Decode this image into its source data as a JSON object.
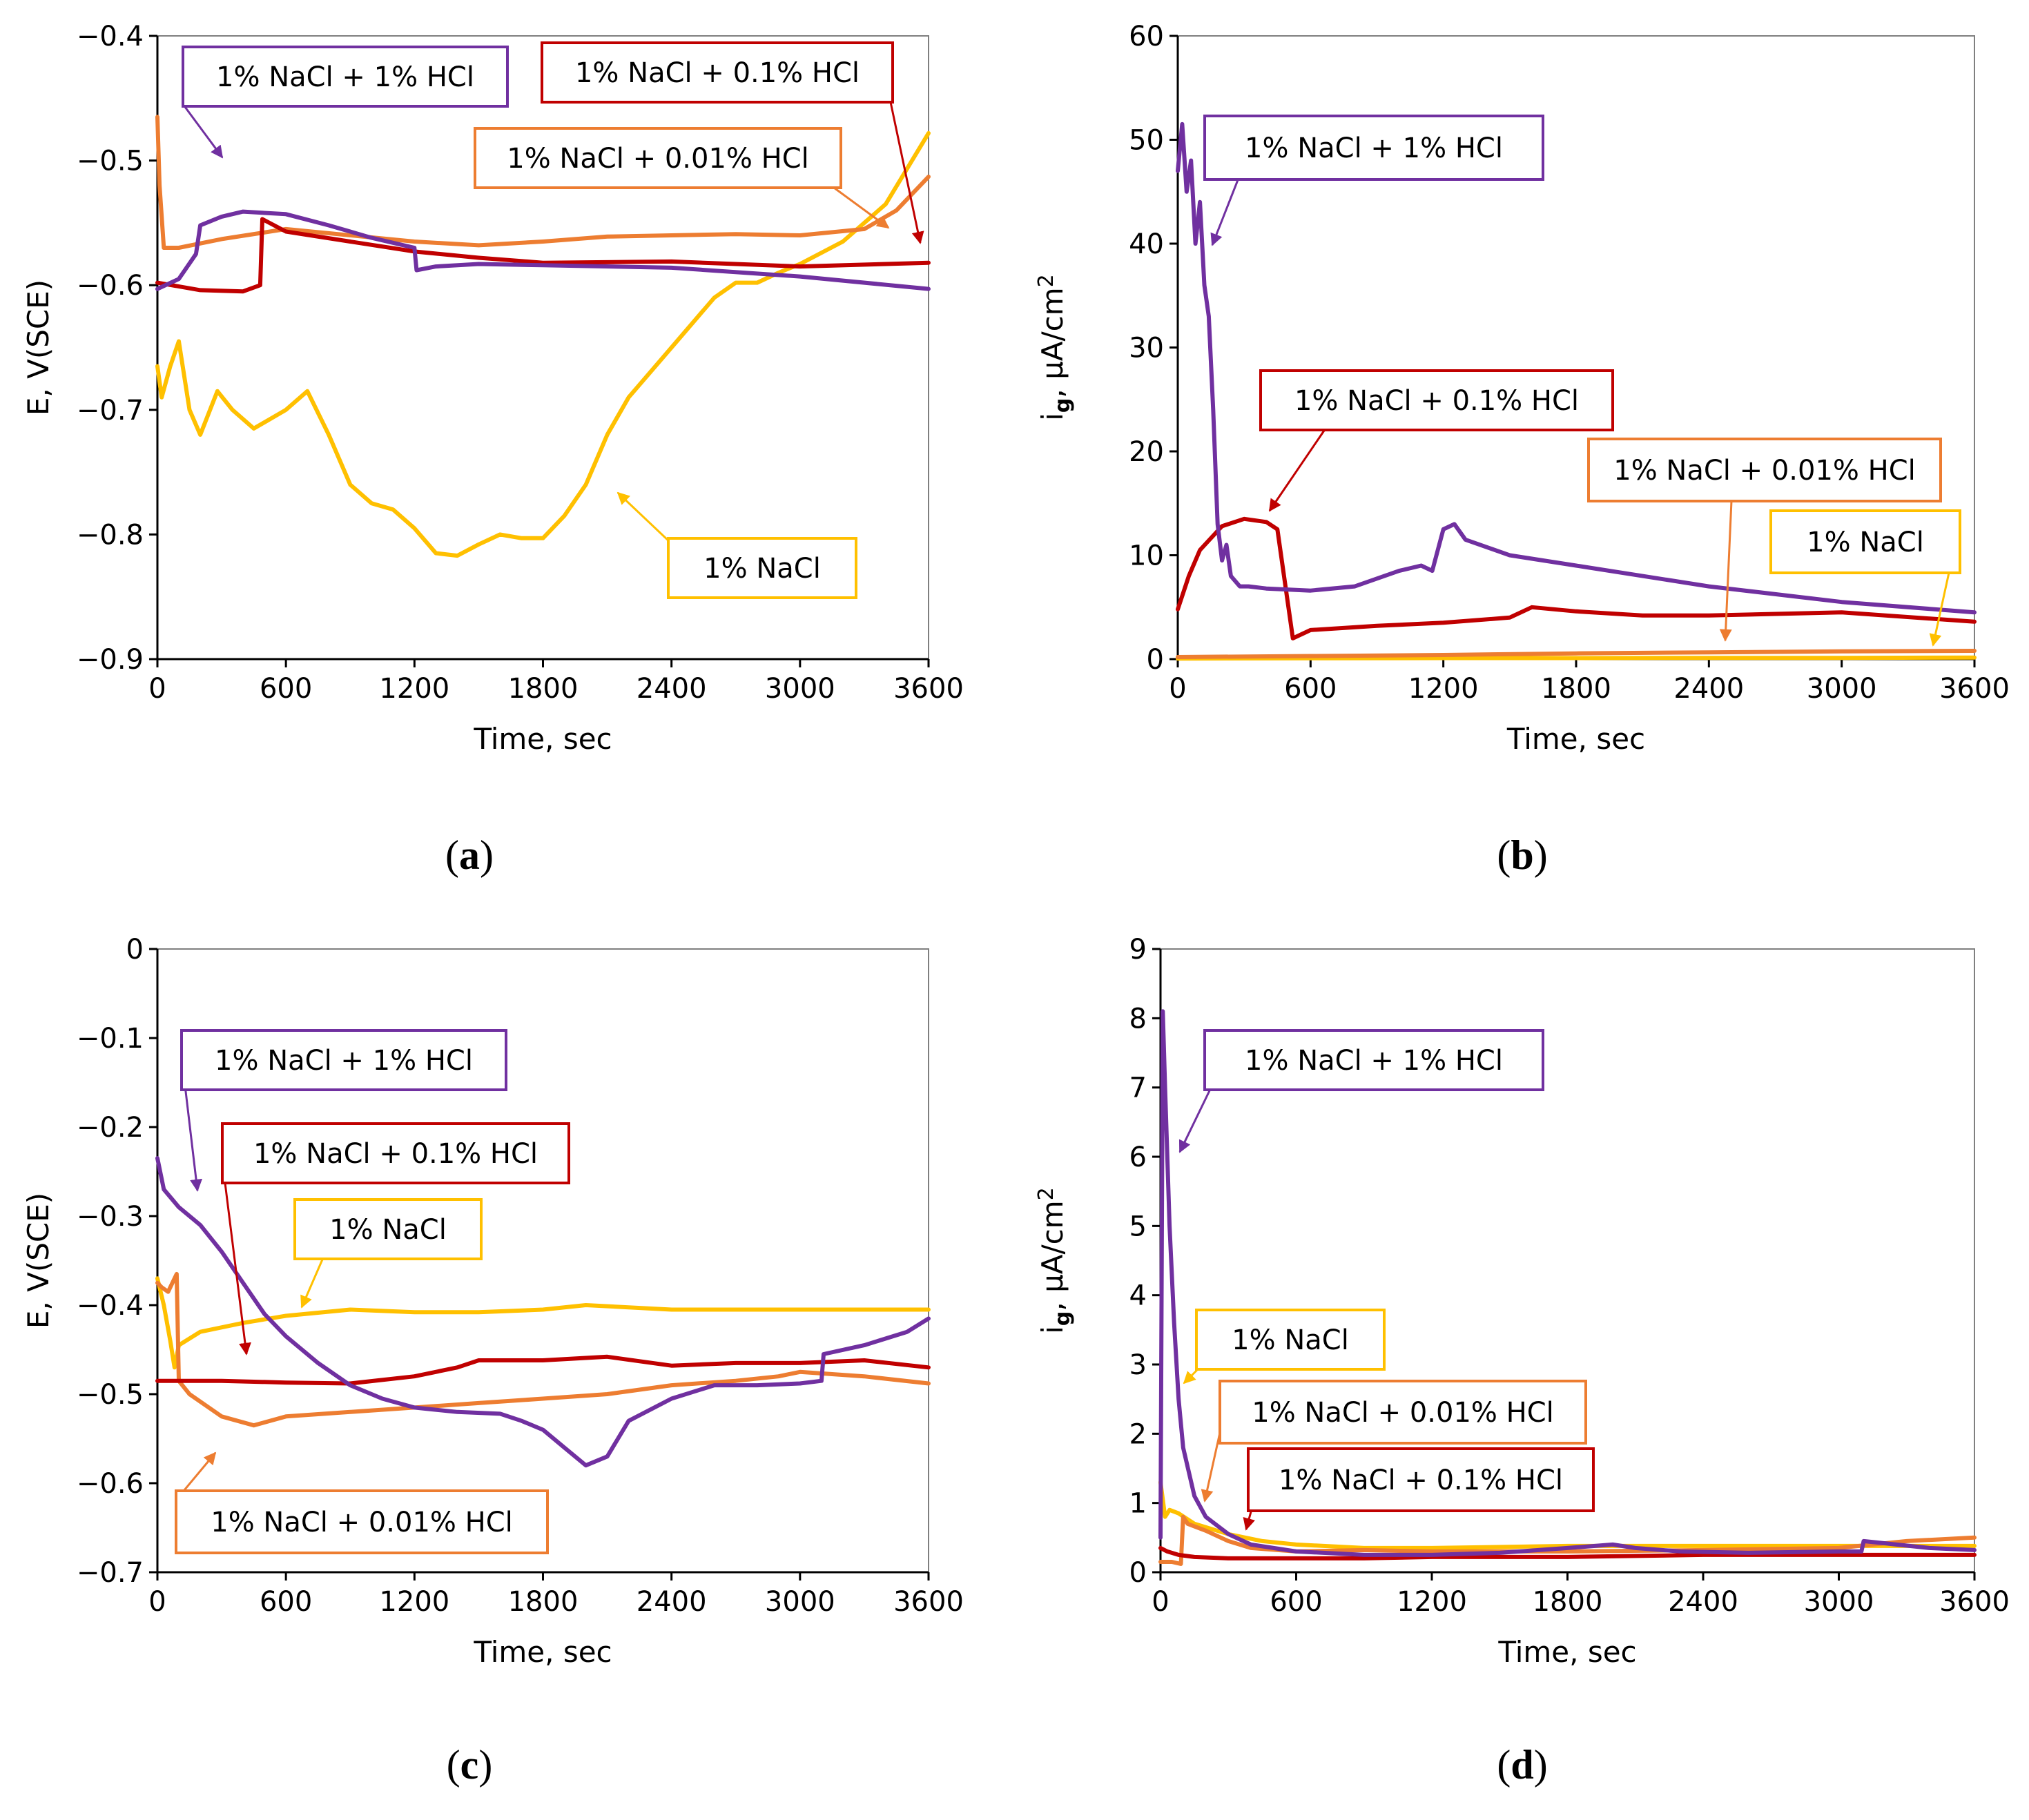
{
  "colors": {
    "purple": "#7030A0",
    "red": "#C00000",
    "orange": "#ED7D31",
    "yellow": "#FFC000",
    "axis": "#000000",
    "frame": "#7f7f7f"
  },
  "chart_data": [
    {
      "id": "a",
      "caption_letter": "a",
      "type": "line",
      "xlabel": "Time, sec",
      "ylabel": "E, V(SCE)",
      "xlim": [
        0,
        3600
      ],
      "ylim": [
        -0.9,
        -0.4
      ],
      "xticks": [
        0,
        600,
        1200,
        1800,
        2400,
        3000,
        3600
      ],
      "xtick_labels": [
        "0",
        "600",
        "1200",
        "1800",
        "2400",
        "3000",
        "3600"
      ],
      "yticks": [
        -0.9,
        -0.8,
        -0.7,
        -0.6,
        -0.5,
        -0.4
      ],
      "ytick_labels": [
        "−0.9",
        "−0.8",
        "−0.7",
        "−0.6",
        "−0.5",
        "−0.4"
      ],
      "series": [
        {
          "name": "1% NaCl + 1% HCl",
          "color": "purple",
          "x": [
            0,
            100,
            180,
            200,
            300,
            400,
            600,
            800,
            1000,
            1150,
            1200,
            1210,
            1300,
            1500,
            1800,
            2400,
            3000,
            3600
          ],
          "y": [
            -0.603,
            -0.595,
            -0.575,
            -0.552,
            -0.545,
            -0.541,
            -0.543,
            -0.552,
            -0.562,
            -0.568,
            -0.57,
            -0.588,
            -0.585,
            -0.583,
            -0.584,
            -0.586,
            -0.593,
            -0.603
          ]
        },
        {
          "name": "1% NaCl + 0.1% HCl",
          "color": "red",
          "x": [
            0,
            200,
            400,
            480,
            490,
            600,
            900,
            1200,
            1500,
            1800,
            2400,
            3000,
            3600
          ],
          "y": [
            -0.598,
            -0.604,
            -0.605,
            -0.6,
            -0.547,
            -0.557,
            -0.565,
            -0.573,
            -0.578,
            -0.582,
            -0.581,
            -0.585,
            -0.582
          ]
        },
        {
          "name": "1% NaCl + 0.01% HCl",
          "color": "orange",
          "x": [
            0,
            10,
            30,
            100,
            300,
            600,
            1200,
            1500,
            1800,
            2100,
            2400,
            2700,
            3000,
            3300,
            3450,
            3600
          ],
          "y": [
            -0.465,
            -0.52,
            -0.57,
            -0.57,
            -0.563,
            -0.555,
            -0.565,
            -0.568,
            -0.565,
            -0.561,
            -0.56,
            -0.559,
            -0.56,
            -0.555,
            -0.54,
            -0.513
          ]
        },
        {
          "name": "1% NaCl",
          "color": "yellow",
          "x": [
            0,
            20,
            60,
            100,
            150,
            200,
            280,
            350,
            450,
            600,
            700,
            800,
            900,
            1000,
            1100,
            1200,
            1300,
            1400,
            1500,
            1600,
            1700,
            1800,
            1900,
            2000,
            2100,
            2200,
            2400,
            2600,
            2700,
            2800,
            2900,
            3000,
            3200,
            3400,
            3600
          ],
          "y": [
            -0.665,
            -0.69,
            -0.665,
            -0.645,
            -0.7,
            -0.72,
            -0.685,
            -0.7,
            -0.715,
            -0.7,
            -0.685,
            -0.72,
            -0.76,
            -0.775,
            -0.78,
            -0.795,
            -0.815,
            -0.817,
            -0.808,
            -0.8,
            -0.803,
            -0.803,
            -0.785,
            -0.76,
            -0.72,
            -0.69,
            -0.65,
            -0.61,
            -0.598,
            -0.598,
            -0.59,
            -0.583,
            -0.565,
            -0.535,
            -0.478
          ]
        }
      ],
      "annotations": [
        {
          "text": "1% NaCl + 1% HCl",
          "color": "purple"
        },
        {
          "text": "1% NaCl + 0.1% HCl",
          "color": "red"
        },
        {
          "text": "1% NaCl + 0.01% HCl",
          "color": "orange"
        },
        {
          "text": "1% NaCl",
          "color": "yellow"
        }
      ]
    },
    {
      "id": "b",
      "caption_letter": "b",
      "type": "line",
      "xlabel": "Time, sec",
      "ylabel_main": "i",
      "ylabel_sub": "g",
      "ylabel_rest": ", μA/cm",
      "ylabel_sup": "2",
      "xlim": [
        0,
        3600
      ],
      "ylim": [
        0,
        60
      ],
      "xticks": [
        0,
        600,
        1200,
        1800,
        2400,
        3000,
        3600
      ],
      "xtick_labels": [
        "0",
        "600",
        "1200",
        "1800",
        "2400",
        "3000",
        "3600"
      ],
      "yticks": [
        0,
        10,
        20,
        30,
        40,
        50,
        60
      ],
      "ytick_labels": [
        "0",
        "10",
        "20",
        "30",
        "40",
        "50",
        "60"
      ],
      "series": [
        {
          "name": "1% NaCl + 1% HCl",
          "color": "purple",
          "x": [
            0,
            20,
            40,
            60,
            80,
            100,
            120,
            140,
            160,
            180,
            200,
            220,
            240,
            280,
            320,
            400,
            600,
            800,
            1000,
            1100,
            1150,
            1200,
            1250,
            1300,
            1500,
            1800,
            2400,
            3000,
            3600
          ],
          "y": [
            47.0,
            51.5,
            45.0,
            48.0,
            40.0,
            44.0,
            36.0,
            33.0,
            24.0,
            13.0,
            9.5,
            11.0,
            8.0,
            7.0,
            7.0,
            6.8,
            6.6,
            7.0,
            8.5,
            9.0,
            8.5,
            12.5,
            13.0,
            11.5,
            10.0,
            9.0,
            7.0,
            5.5,
            4.5
          ]
        },
        {
          "name": "1% NaCl + 0.1% HCl",
          "color": "red",
          "x": [
            0,
            50,
            100,
            200,
            300,
            400,
            450,
            500,
            520,
            600,
            900,
            1200,
            1500,
            1600,
            1800,
            2100,
            2400,
            3000,
            3600
          ],
          "y": [
            4.8,
            8.0,
            10.5,
            12.8,
            13.5,
            13.2,
            12.5,
            5.0,
            2.0,
            2.8,
            3.2,
            3.5,
            4.0,
            5.0,
            4.6,
            4.2,
            4.2,
            4.5,
            3.6
          ]
        },
        {
          "name": "1% NaCl + 0.01% HCl",
          "color": "orange",
          "x": [
            0,
            600,
            1200,
            1800,
            2400,
            3000,
            3600
          ],
          "y": [
            0.2,
            0.3,
            0.4,
            0.55,
            0.65,
            0.75,
            0.8
          ]
        },
        {
          "name": "1% NaCl",
          "color": "yellow",
          "x": [
            0,
            600,
            1200,
            1800,
            2400,
            3000,
            3600
          ],
          "y": [
            0.05,
            0.08,
            0.1,
            0.1,
            0.12,
            0.12,
            0.15
          ]
        }
      ],
      "annotations": [
        {
          "text": "1% NaCl + 1% HCl",
          "color": "purple"
        },
        {
          "text": "1% NaCl + 0.1% HCl",
          "color": "red"
        },
        {
          "text": "1% NaCl + 0.01% HCl",
          "color": "orange"
        },
        {
          "text": "1% NaCl",
          "color": "yellow"
        }
      ]
    },
    {
      "id": "c",
      "caption_letter": "c",
      "type": "line",
      "xlabel": "Time, sec",
      "ylabel": "E, V(SCE)",
      "xlim": [
        0,
        3600
      ],
      "ylim": [
        -0.7,
        0
      ],
      "xticks": [
        0,
        600,
        1200,
        1800,
        2400,
        3000,
        3600
      ],
      "xtick_labels": [
        "0",
        "600",
        "1200",
        "1800",
        "2400",
        "3000",
        "3600"
      ],
      "yticks": [
        -0.7,
        -0.6,
        -0.5,
        -0.4,
        -0.3,
        -0.2,
        -0.1,
        0
      ],
      "ytick_labels": [
        "−0.7",
        "−0.6",
        "−0.5",
        "−0.4",
        "−0.3",
        "−0.2",
        "−0.1",
        "0"
      ],
      "series": [
        {
          "name": "1% NaCl + 1% HCl",
          "color": "purple",
          "x": [
            0,
            30,
            100,
            200,
            300,
            400,
            500,
            600,
            750,
            900,
            1050,
            1200,
            1400,
            1600,
            1700,
            1800,
            1900,
            2000,
            2100,
            2200,
            2400,
            2600,
            2800,
            3000,
            3100,
            3110,
            3300,
            3500,
            3600
          ],
          "y": [
            -0.235,
            -0.27,
            -0.29,
            -0.31,
            -0.34,
            -0.375,
            -0.41,
            -0.435,
            -0.465,
            -0.49,
            -0.505,
            -0.515,
            -0.52,
            -0.522,
            -0.53,
            -0.54,
            -0.56,
            -0.58,
            -0.57,
            -0.53,
            -0.505,
            -0.49,
            -0.49,
            -0.488,
            -0.485,
            -0.455,
            -0.445,
            -0.43,
            -0.415
          ]
        },
        {
          "name": "1% NaCl + 0.1% HCl",
          "color": "red",
          "x": [
            0,
            300,
            600,
            900,
            1200,
            1400,
            1500,
            1800,
            2100,
            2400,
            2700,
            3000,
            3300,
            3600
          ],
          "y": [
            -0.485,
            -0.485,
            -0.487,
            -0.488,
            -0.48,
            -0.47,
            -0.462,
            -0.462,
            -0.458,
            -0.468,
            -0.465,
            -0.465,
            -0.462,
            -0.47
          ]
        },
        {
          "name": "1% NaCl + 0.01% HCl",
          "color": "orange",
          "x": [
            0,
            20,
            50,
            70,
            90,
            100,
            150,
            300,
            450,
            600,
            900,
            1200,
            1500,
            1800,
            2100,
            2400,
            2700,
            2900,
            3000,
            3300,
            3600
          ],
          "y": [
            -0.375,
            -0.38,
            -0.385,
            -0.375,
            -0.365,
            -0.485,
            -0.5,
            -0.525,
            -0.535,
            -0.525,
            -0.52,
            -0.515,
            -0.51,
            -0.505,
            -0.5,
            -0.49,
            -0.485,
            -0.48,
            -0.475,
            -0.48,
            -0.488
          ]
        },
        {
          "name": "1% NaCl",
          "color": "yellow",
          "x": [
            0,
            30,
            60,
            80,
            100,
            200,
            400,
            600,
            900,
            1200,
            1500,
            1800,
            2000,
            2400,
            3000,
            3600
          ],
          "y": [
            -0.37,
            -0.4,
            -0.44,
            -0.47,
            -0.445,
            -0.43,
            -0.42,
            -0.412,
            -0.405,
            -0.408,
            -0.408,
            -0.405,
            -0.4,
            -0.405,
            -0.405,
            -0.405
          ]
        }
      ],
      "annotations": [
        {
          "text": "1% NaCl + 1% HCl",
          "color": "purple"
        },
        {
          "text": "1% NaCl + 0.1% HCl",
          "color": "red"
        },
        {
          "text": "1% NaCl",
          "color": "yellow"
        },
        {
          "text": "1% NaCl + 0.01% HCl",
          "color": "orange"
        }
      ]
    },
    {
      "id": "d",
      "caption_letter": "d",
      "type": "line",
      "xlabel": "Time, sec",
      "ylabel_main": "i",
      "ylabel_sub": "g",
      "ylabel_rest": ", μA/cm",
      "ylabel_sup": "2",
      "xlim": [
        0,
        3600
      ],
      "ylim": [
        0,
        9
      ],
      "xticks": [
        0,
        600,
        1200,
        1800,
        2400,
        3000,
        3600
      ],
      "xtick_labels": [
        "0",
        "600",
        "1200",
        "1800",
        "2400",
        "3000",
        "3600"
      ],
      "yticks": [
        0,
        1,
        2,
        3,
        4,
        5,
        6,
        7,
        8,
        9
      ],
      "ytick_labels": [
        "0",
        "1",
        "2",
        "3",
        "4",
        "5",
        "6",
        "7",
        "8",
        "9"
      ],
      "series": [
        {
          "name": "1% NaCl + 1% HCl",
          "color": "purple",
          "x": [
            0,
            10,
            20,
            40,
            60,
            80,
            100,
            150,
            200,
            300,
            400,
            600,
            900,
            1200,
            1500,
            1800,
            2000,
            2100,
            2300,
            2600,
            3000,
            3100,
            3110,
            3400,
            3600
          ],
          "y": [
            0.5,
            8.1,
            7.0,
            5.0,
            3.6,
            2.5,
            1.8,
            1.1,
            0.8,
            0.55,
            0.4,
            0.3,
            0.25,
            0.25,
            0.28,
            0.35,
            0.4,
            0.35,
            0.3,
            0.28,
            0.3,
            0.3,
            0.45,
            0.35,
            0.32
          ]
        },
        {
          "name": "1% NaCl + 0.1% HCl",
          "color": "red",
          "x": [
            0,
            30,
            80,
            150,
            300,
            600,
            900,
            1200,
            1800,
            2400,
            3000,
            3600
          ],
          "y": [
            0.35,
            0.3,
            0.25,
            0.22,
            0.2,
            0.2,
            0.2,
            0.22,
            0.22,
            0.25,
            0.25,
            0.25
          ]
        },
        {
          "name": "1% NaCl + 0.01% HCl",
          "color": "orange",
          "x": [
            0,
            50,
            90,
            100,
            120,
            200,
            300,
            400,
            600,
            900,
            1200,
            1800,
            2400,
            3000,
            3300,
            3600
          ],
          "y": [
            0.15,
            0.15,
            0.12,
            0.8,
            0.7,
            0.6,
            0.45,
            0.35,
            0.3,
            0.32,
            0.3,
            0.3,
            0.32,
            0.35,
            0.45,
            0.5
          ]
        },
        {
          "name": "1% NaCl",
          "color": "yellow",
          "x": [
            0,
            20,
            40,
            80,
            150,
            300,
            450,
            600,
            900,
            1200,
            1800,
            2400,
            3000,
            3600
          ],
          "y": [
            1.3,
            0.8,
            0.9,
            0.85,
            0.7,
            0.55,
            0.45,
            0.4,
            0.35,
            0.35,
            0.38,
            0.38,
            0.38,
            0.38
          ]
        }
      ],
      "annotations": [
        {
          "text": "1% NaCl + 1% HCl",
          "color": "purple"
        },
        {
          "text": "1% NaCl",
          "color": "yellow"
        },
        {
          "text": "1% NaCl + 0.01% HCl",
          "color": "orange"
        },
        {
          "text": "1% NaCl + 0.1% HCl",
          "color": "red"
        }
      ]
    }
  ]
}
